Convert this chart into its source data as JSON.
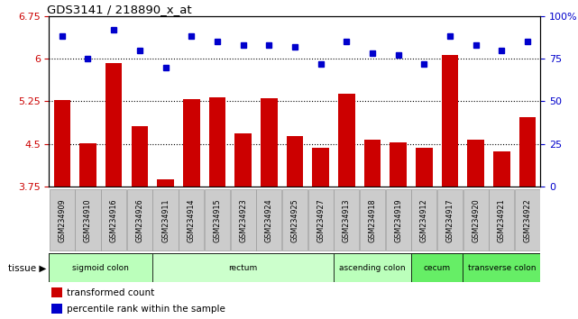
{
  "title": "GDS3141 / 218890_x_at",
  "samples": [
    "GSM234909",
    "GSM234910",
    "GSM234916",
    "GSM234926",
    "GSM234911",
    "GSM234914",
    "GSM234915",
    "GSM234923",
    "GSM234924",
    "GSM234925",
    "GSM234927",
    "GSM234913",
    "GSM234918",
    "GSM234919",
    "GSM234912",
    "GSM234917",
    "GSM234920",
    "GSM234921",
    "GSM234922"
  ],
  "bar_values": [
    5.27,
    4.51,
    5.92,
    4.82,
    3.88,
    5.29,
    5.32,
    4.69,
    5.3,
    4.64,
    4.43,
    5.38,
    4.58,
    4.53,
    4.43,
    6.06,
    4.57,
    4.37,
    4.97
  ],
  "dot_values": [
    88,
    75,
    92,
    80,
    70,
    88,
    85,
    83,
    83,
    82,
    72,
    85,
    78,
    77,
    72,
    88,
    83,
    80,
    85
  ],
  "bar_color": "#cc0000",
  "dot_color": "#0000cc",
  "ylim_left": [
    3.75,
    6.75
  ],
  "ylim_right": [
    0,
    100
  ],
  "yticks_left": [
    3.75,
    4.5,
    5.25,
    6.0,
    6.75
  ],
  "yticks_right": [
    0,
    25,
    50,
    75,
    100
  ],
  "hlines": [
    6.0,
    5.25,
    4.5
  ],
  "tissue_groups": [
    {
      "label": "sigmoid colon",
      "start": 0,
      "end": 3,
      "color": "#bbffbb"
    },
    {
      "label": "rectum",
      "start": 4,
      "end": 10,
      "color": "#ccffcc"
    },
    {
      "label": "ascending colon",
      "start": 11,
      "end": 13,
      "color": "#bbffbb"
    },
    {
      "label": "cecum",
      "start": 14,
      "end": 15,
      "color": "#66ee66"
    },
    {
      "label": "transverse colon",
      "start": 16,
      "end": 18,
      "color": "#66ee66"
    }
  ],
  "tissue_label": "tissue",
  "legend_bar_label": "transformed count",
  "legend_dot_label": "percentile rank within the sample",
  "xlabel_bg_color": "#cccccc",
  "xlabel_border_color": "#999999"
}
